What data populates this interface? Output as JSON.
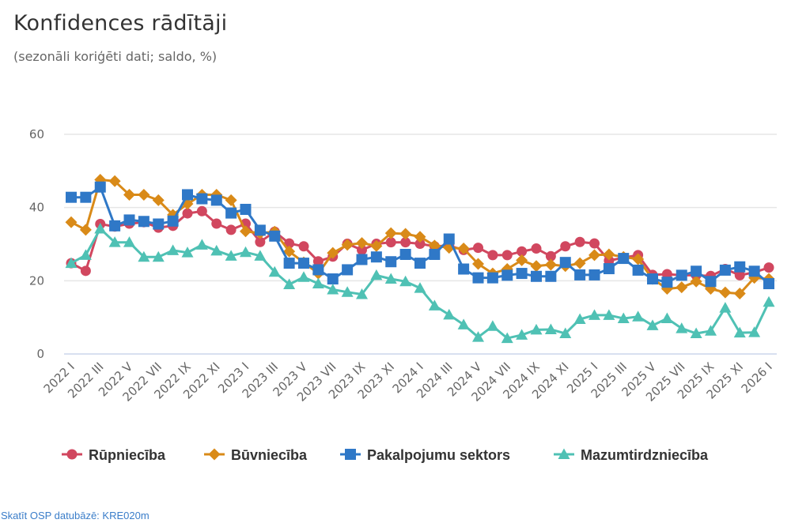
{
  "title": "Konfidences rādītāji",
  "subtitle": "(sezonāli koriģēti dati; saldo, %)",
  "footer_link": "Skatīt OSP datubāzē: KRE020m",
  "chart_data": {
    "type": "line",
    "title": "Konfidences rādītāji",
    "subtitle": "(sezonāli koriģēti dati; saldo, %)",
    "xlabel": "",
    "ylabel": "",
    "ylim": [
      0,
      60
    ],
    "yticks": [
      0,
      20,
      40,
      60
    ],
    "grid": true,
    "legend": "bottom-center",
    "x": [
      "2022 I",
      "2022 II",
      "2022 III",
      "2022 IV",
      "2022 V",
      "2022 VI",
      "2022 VII",
      "2022 VIII",
      "2022 IX",
      "2022 X",
      "2022 XI",
      "2022 XII",
      "2023 I",
      "2023 II",
      "2023 III",
      "2023 IV",
      "2023 V",
      "2023 VI",
      "2023 VII",
      "2023 VIII",
      "2023 IX",
      "2023 X",
      "2023 XI",
      "2023 XII",
      "2024 I",
      "2024 II",
      "2024 III",
      "2024 IV",
      "2024 V",
      "2024 VI",
      "2024 VII",
      "2024 VIII",
      "2024 IX",
      "2024 X",
      "2024 XI",
      "2024 XII",
      "2025 I",
      "2025 II",
      "2025 III",
      "2025 IV",
      "2025 V",
      "2025 VI",
      "2025 VII",
      "2025 VIII",
      "2025 IX",
      "2025 X",
      "2025 XI",
      "2025 XII",
      "2026 I"
    ],
    "xtick_labels": [
      "2022 I",
      "2022 III",
      "2022 V",
      "2022 VII",
      "2022 IX",
      "2022 XI",
      "2023 I",
      "2023 III",
      "2023 V",
      "2023 VII",
      "2023 IX",
      "2023 XI",
      "2024 I",
      "2024 III",
      "2024 V",
      "2024 VII",
      "2024 IX",
      "2024 XI",
      "2025 I",
      "2025 III",
      "2025 V",
      "2025 VII",
      "2025 IX",
      "2025 XI",
      "2026 I"
    ],
    "series": [
      {
        "name": "Rūpniecība",
        "color": "#d1475f",
        "marker": "circle",
        "values": [
          24.8,
          22.7,
          35.5,
          34.8,
          35.6,
          36.0,
          34.5,
          35.0,
          38.4,
          39.0,
          35.6,
          33.9,
          35.6,
          30.6,
          33.4,
          30.2,
          29.4,
          25.3,
          26.6,
          30.1,
          28.4,
          30.1,
          30.5,
          30.5,
          30.1,
          29.4,
          29.6,
          28.4,
          29.0,
          27.0,
          27.0,
          28.0,
          28.8,
          26.7,
          29.4,
          30.6,
          30.2,
          25.5,
          26.3,
          27.0,
          21.6,
          21.8,
          21.5,
          21.5,
          21.3,
          23.2,
          21.5,
          22.3,
          23.6
        ]
      },
      {
        "name": "Būvniecība",
        "color": "#d98a18",
        "marker": "diamond",
        "values": [
          36.0,
          33.9,
          47.6,
          47.2,
          43.5,
          43.5,
          42.0,
          38.0,
          41.0,
          43.5,
          43.5,
          42.0,
          33.5,
          33.0,
          33.4,
          28.0,
          25.0,
          22.0,
          27.6,
          29.8,
          30.3,
          29.5,
          33.0,
          32.8,
          32.0,
          29.6,
          29.0,
          28.8,
          24.6,
          22.0,
          23.2,
          25.6,
          24.0,
          24.4,
          24.0,
          24.8,
          27.0,
          27.2,
          26.5,
          25.9,
          20.5,
          17.8,
          18.2,
          19.8,
          17.8,
          16.8,
          16.5,
          20.8,
          20.5
        ]
      },
      {
        "name": "Pakalpojumu sektors",
        "color": "#2f78c7",
        "marker": "square",
        "values": [
          42.8,
          42.8,
          45.6,
          35.0,
          36.6,
          36.2,
          35.5,
          36.3,
          43.5,
          42.4,
          42.0,
          38.5,
          39.5,
          33.8,
          32.2,
          24.8,
          24.8,
          23.0,
          20.5,
          23.0,
          25.8,
          26.5,
          25.2,
          27.2,
          24.8,
          27.2,
          31.4,
          23.2,
          20.8,
          20.8,
          21.5,
          22.0,
          21.2,
          21.2,
          25.0,
          21.6,
          21.6,
          23.3,
          26.1,
          22.9,
          20.5,
          19.6,
          21.5,
          22.6,
          19.8,
          22.9,
          23.8,
          22.6,
          19.2
        ]
      },
      {
        "name": "Mazumtirdzniecība",
        "color": "#4fc1b4",
        "marker": "triangle",
        "values": [
          24.8,
          27.0,
          34.2,
          30.5,
          30.5,
          26.5,
          26.5,
          28.3,
          27.7,
          29.8,
          28.2,
          26.8,
          27.8,
          26.8,
          22.4,
          19.0,
          21.0,
          19.2,
          17.6,
          16.9,
          16.3,
          21.5,
          20.5,
          19.8,
          18.0,
          13.2,
          10.7,
          8.0,
          4.6,
          7.6,
          4.3,
          5.2,
          6.6,
          6.7,
          5.6,
          9.5,
          10.6,
          10.6,
          9.7,
          10.2,
          7.8,
          9.7,
          7.0,
          5.6,
          6.3,
          12.6,
          5.8,
          5.9,
          14.2
        ]
      }
    ]
  }
}
